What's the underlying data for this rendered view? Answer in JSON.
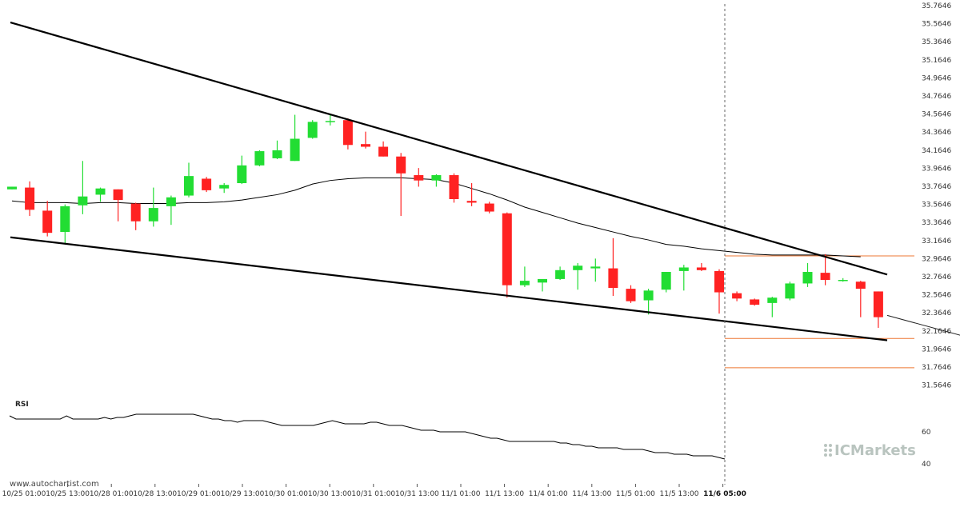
{
  "watermark": "www.autochartist.com",
  "brand": {
    "prefix": "IC",
    "suffix": "Markets",
    "color": "#b9c4bf"
  },
  "colors": {
    "up": "#22dd33",
    "down": "#ff2222",
    "trend": "#000000",
    "level": "#ee7733",
    "ma": "#000000"
  },
  "chart_data": {
    "type": "candlestick",
    "y_ticks": [
      "35.7646",
      "35.5646",
      "35.3646",
      "35.1646",
      "34.9646",
      "34.7646",
      "34.5646",
      "34.3646",
      "34.1646",
      "33.9646",
      "33.7646",
      "33.5646",
      "33.3646",
      "33.1646",
      "32.9646",
      "32.7646",
      "32.5646",
      "32.3646",
      "32.1646",
      "31.9646",
      "31.7646",
      "31.5646"
    ],
    "ylim": [
      31.5,
      35.77
    ],
    "x_labels": [
      "10/25 01:00",
      "10/25 13:00",
      "10/28 01:00",
      "10/28 13:00",
      "10/29 01:00",
      "10/29 13:00",
      "10/30 01:00",
      "10/30 13:00",
      "10/31 01:00",
      "10/31 13:00",
      "11/1 01:00",
      "11/1 13:00",
      "11/4 01:00",
      "11/4 13:00",
      "11/5 01:00",
      "11/5 13:00",
      "11/6 05:00"
    ],
    "candles": [
      {
        "o": 33.7,
        "h": 33.73,
        "l": 33.7,
        "c": 33.73
      },
      {
        "o": 33.72,
        "h": 33.79,
        "l": 33.4,
        "c": 33.47
      },
      {
        "o": 33.46,
        "h": 33.57,
        "l": 33.17,
        "c": 33.21
      },
      {
        "o": 33.22,
        "h": 33.53,
        "l": 33.08,
        "c": 33.51
      },
      {
        "o": 33.52,
        "h": 34.02,
        "l": 33.42,
        "c": 33.62
      },
      {
        "o": 33.64,
        "h": 33.72,
        "l": 33.56,
        "c": 33.71
      },
      {
        "o": 33.7,
        "h": 33.7,
        "l": 33.34,
        "c": 33.58
      },
      {
        "o": 33.54,
        "h": 33.55,
        "l": 33.24,
        "c": 33.34
      },
      {
        "o": 33.34,
        "h": 33.72,
        "l": 33.28,
        "c": 33.49
      },
      {
        "o": 33.51,
        "h": 33.63,
        "l": 33.3,
        "c": 33.61
      },
      {
        "o": 33.63,
        "h": 34.0,
        "l": 33.61,
        "c": 33.85
      },
      {
        "o": 33.82,
        "h": 33.84,
        "l": 33.67,
        "c": 33.69
      },
      {
        "o": 33.71,
        "h": 33.77,
        "l": 33.66,
        "c": 33.75
      },
      {
        "o": 33.77,
        "h": 34.08,
        "l": 33.76,
        "c": 33.97
      },
      {
        "o": 33.97,
        "h": 34.14,
        "l": 33.96,
        "c": 34.13
      },
      {
        "o": 34.05,
        "h": 34.25,
        "l": 34.04,
        "c": 34.14
      },
      {
        "o": 34.02,
        "h": 34.54,
        "l": 34.02,
        "c": 34.27
      },
      {
        "o": 34.28,
        "h": 34.48,
        "l": 34.27,
        "c": 34.46
      },
      {
        "o": 34.46,
        "h": 34.54,
        "l": 34.42,
        "c": 34.47
      },
      {
        "o": 34.48,
        "h": 34.5,
        "l": 34.15,
        "c": 34.2
      },
      {
        "o": 34.21,
        "h": 34.35,
        "l": 34.16,
        "c": 34.18
      },
      {
        "o": 34.18,
        "h": 34.24,
        "l": 34.07,
        "c": 34.07
      },
      {
        "o": 34.07,
        "h": 34.11,
        "l": 33.4,
        "c": 33.88
      },
      {
        "o": 33.86,
        "h": 33.94,
        "l": 33.73,
        "c": 33.8
      },
      {
        "o": 33.8,
        "h": 33.87,
        "l": 33.73,
        "c": 33.86
      },
      {
        "o": 33.86,
        "h": 33.88,
        "l": 33.55,
        "c": 33.59
      },
      {
        "o": 33.57,
        "h": 33.77,
        "l": 33.51,
        "c": 33.55
      },
      {
        "o": 33.54,
        "h": 33.56,
        "l": 33.43,
        "c": 33.45
      },
      {
        "o": 33.43,
        "h": 33.44,
        "l": 32.48,
        "c": 32.62
      },
      {
        "o": 32.62,
        "h": 32.83,
        "l": 32.6,
        "c": 32.67
      },
      {
        "o": 32.65,
        "h": 32.68,
        "l": 32.55,
        "c": 32.69
      },
      {
        "o": 32.69,
        "h": 32.83,
        "l": 32.68,
        "c": 32.79
      },
      {
        "o": 32.79,
        "h": 32.87,
        "l": 32.57,
        "c": 32.84
      },
      {
        "o": 32.81,
        "h": 32.92,
        "l": 32.66,
        "c": 32.83
      },
      {
        "o": 32.81,
        "h": 33.15,
        "l": 32.5,
        "c": 32.59
      },
      {
        "o": 32.58,
        "h": 32.62,
        "l": 32.42,
        "c": 32.44
      },
      {
        "o": 32.45,
        "h": 32.58,
        "l": 32.29,
        "c": 32.56
      },
      {
        "o": 32.57,
        "h": 32.77,
        "l": 32.54,
        "c": 32.77
      },
      {
        "o": 32.78,
        "h": 32.85,
        "l": 32.56,
        "c": 32.82
      },
      {
        "o": 32.82,
        "h": 32.87,
        "l": 32.78,
        "c": 32.79
      },
      {
        "o": 32.78,
        "h": 32.8,
        "l": 32.3,
        "c": 32.54
      },
      {
        "o": 32.53,
        "h": 32.55,
        "l": 32.44,
        "c": 32.47
      },
      {
        "o": 32.46,
        "h": 32.47,
        "l": 32.39,
        "c": 32.4
      },
      {
        "o": 32.42,
        "h": 32.49,
        "l": 32.26,
        "c": 32.48
      },
      {
        "o": 32.47,
        "h": 32.66,
        "l": 32.45,
        "c": 32.64
      },
      {
        "o": 32.64,
        "h": 32.87,
        "l": 32.6,
        "c": 32.77
      },
      {
        "o": 32.76,
        "h": 32.97,
        "l": 32.62,
        "c": 32.68
      },
      {
        "o": 32.68,
        "h": 32.7,
        "l": 32.66,
        "c": 32.68
      },
      {
        "o": 32.66,
        "h": 32.67,
        "l": 32.26,
        "c": 32.58
      },
      {
        "o": 32.55,
        "h": 32.55,
        "l": 32.14,
        "c": 32.26
      }
    ],
    "moving_average": [
      33.57,
      33.55,
      33.55,
      33.55,
      33.54,
      33.55,
      33.55,
      33.54,
      33.54,
      33.54,
      33.55,
      33.55,
      33.56,
      33.58,
      33.61,
      33.64,
      33.69,
      33.76,
      33.8,
      33.82,
      33.83,
      33.83,
      33.83,
      33.82,
      33.81,
      33.77,
      33.71,
      33.65,
      33.58,
      33.5,
      33.44,
      33.38,
      33.32,
      33.27,
      33.22,
      33.17,
      33.13,
      33.08,
      33.06,
      33.03,
      33.01,
      32.99,
      32.97,
      32.96,
      32.96,
      32.96,
      32.96,
      32.95,
      32.94
    ],
    "trendlines": [
      {
        "name": "upper",
        "from": [
          0,
          35.58
        ],
        "to": [
          50,
          32.74
        ]
      },
      {
        "name": "lower",
        "from": [
          0,
          33.16
        ],
        "to": [
          50,
          32.0
        ]
      }
    ],
    "projection": {
      "from": [
        50,
        32.28
      ],
      "to": [
        61,
        31.69
      ]
    },
    "levels": [
      32.95,
      32.02,
      31.69
    ],
    "rsi": {
      "label": "RSI",
      "ticks": [
        "60",
        "40"
      ],
      "ylim": [
        30,
        85
      ],
      "values": [
        70,
        68,
        68,
        68,
        68,
        68,
        68,
        68,
        68,
        70,
        68,
        68,
        68,
        68,
        68,
        69,
        68,
        69,
        69,
        70,
        71,
        71,
        71,
        71,
        71,
        71,
        71,
        71,
        71,
        71,
        70,
        69,
        68,
        68,
        67,
        67,
        66,
        67,
        67,
        67,
        67,
        66,
        65,
        64,
        64,
        64,
        64,
        64,
        64,
        65,
        66,
        67,
        66,
        65,
        65,
        65,
        65,
        66,
        66,
        65,
        64,
        64,
        64,
        63,
        62,
        61,
        61,
        61,
        60,
        60,
        60,
        60,
        60,
        59,
        58,
        57,
        56,
        56,
        55,
        54,
        54,
        54,
        54,
        54,
        54,
        54,
        54,
        53,
        53,
        52,
        52,
        51,
        51,
        50,
        50,
        50,
        50,
        49,
        49,
        49,
        49,
        48,
        47,
        47,
        47,
        46,
        46,
        46,
        45,
        45,
        45,
        45,
        44,
        43
      ]
    }
  }
}
